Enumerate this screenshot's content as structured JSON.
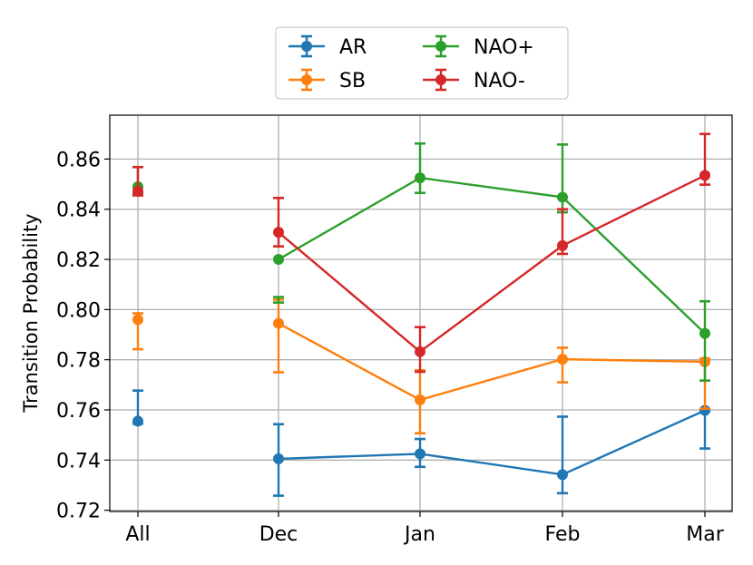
{
  "chart_data": {
    "type": "line",
    "title": "",
    "xlabel": "",
    "ylabel": "Transition Probability",
    "categories": [
      "All",
      "Dec",
      "Jan",
      "Feb",
      "Mar"
    ],
    "ylim": [
      0.7195,
      0.8775
    ],
    "yticks": [
      0.72,
      0.74,
      0.76,
      0.78,
      0.8,
      0.82,
      0.84,
      0.86
    ],
    "ytick_labels": [
      "0.72",
      "0.74",
      "0.76",
      "0.78",
      "0.80",
      "0.82",
      "0.84",
      "0.86"
    ],
    "grid": true,
    "legend_position": "top-center",
    "series": [
      {
        "name": "AR",
        "color": "#1f77b4",
        "values": [
          0.7555,
          0.7405,
          0.7425,
          0.7342,
          0.7598
        ],
        "err_low": [
          0.7545,
          0.7258,
          0.7373,
          0.7268,
          0.7446
        ],
        "err_high": [
          0.7677,
          0.7543,
          0.7484,
          0.7573,
          0.7595
        ]
      },
      {
        "name": "SB",
        "color": "#ff7f0e",
        "values": [
          0.796,
          0.7945,
          0.764,
          0.7802,
          0.7792
        ],
        "err_low": [
          0.7842,
          0.775,
          0.7507,
          0.771,
          0.7605
        ],
        "err_high": [
          0.7985,
          0.804,
          0.7758,
          0.7848,
          0.7805
        ]
      },
      {
        "name": "NAO+",
        "color": "#2ca02c",
        "values": [
          0.849,
          0.82,
          0.8525,
          0.8448,
          0.7905
        ],
        "err_low": [
          0.8463,
          0.8028,
          0.8465,
          0.8388,
          0.7717
        ],
        "err_high": [
          0.8568,
          0.805,
          0.8662,
          0.8658,
          0.8033
        ]
      },
      {
        "name": "NAO-",
        "color": "#d62728",
        "values": [
          0.8472,
          0.8308,
          0.7832,
          0.8255,
          0.8535
        ],
        "err_low": [
          0.8455,
          0.8252,
          0.7752,
          0.8222,
          0.8498
        ],
        "err_high": [
          0.8568,
          0.8445,
          0.793,
          0.84,
          0.87
        ]
      }
    ],
    "connect_from_index": 1
  }
}
